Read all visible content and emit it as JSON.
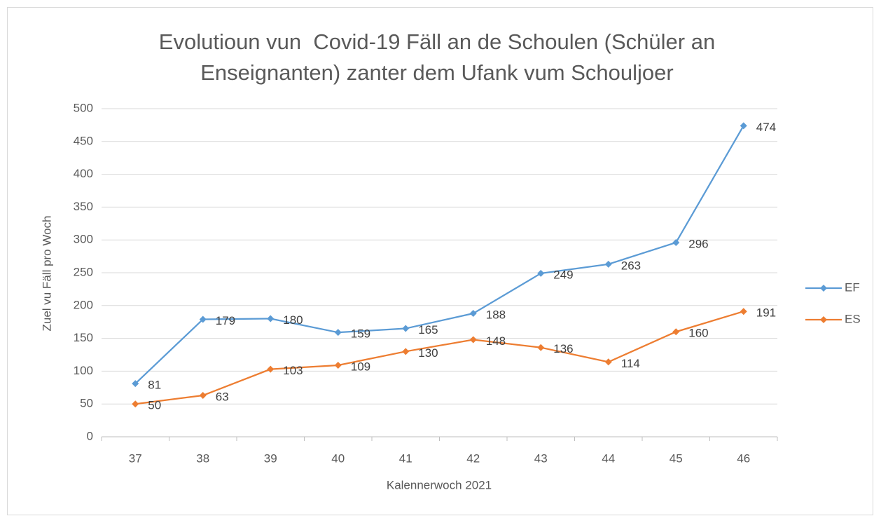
{
  "chart_data": {
    "type": "line",
    "title": "Evolutioun vun  Covid-19 Fäll an de Schoulen (Schüler an Enseignanten) zanter dem Ufank vum Schouljoer",
    "x_label": "Kalennerwoch 2021",
    "y_label": "Zuel vu Fäll pro Woch",
    "categories": [
      "37",
      "38",
      "39",
      "40",
      "41",
      "42",
      "43",
      "44",
      "45",
      "46"
    ],
    "series": [
      {
        "name": "EF",
        "color": "#5b9bd5",
        "values": [
          81,
          179,
          180,
          159,
          165,
          188,
          249,
          263,
          296,
          474
        ]
      },
      {
        "name": "ES",
        "color": "#ed7d31",
        "values": [
          50,
          63,
          103,
          109,
          130,
          148,
          136,
          114,
          160,
          191
        ]
      }
    ],
    "ylim": [
      0,
      500
    ],
    "yticks": [
      0,
      50,
      100,
      150,
      200,
      250,
      300,
      350,
      400,
      450,
      500
    ],
    "grid": true,
    "legend": "right"
  }
}
